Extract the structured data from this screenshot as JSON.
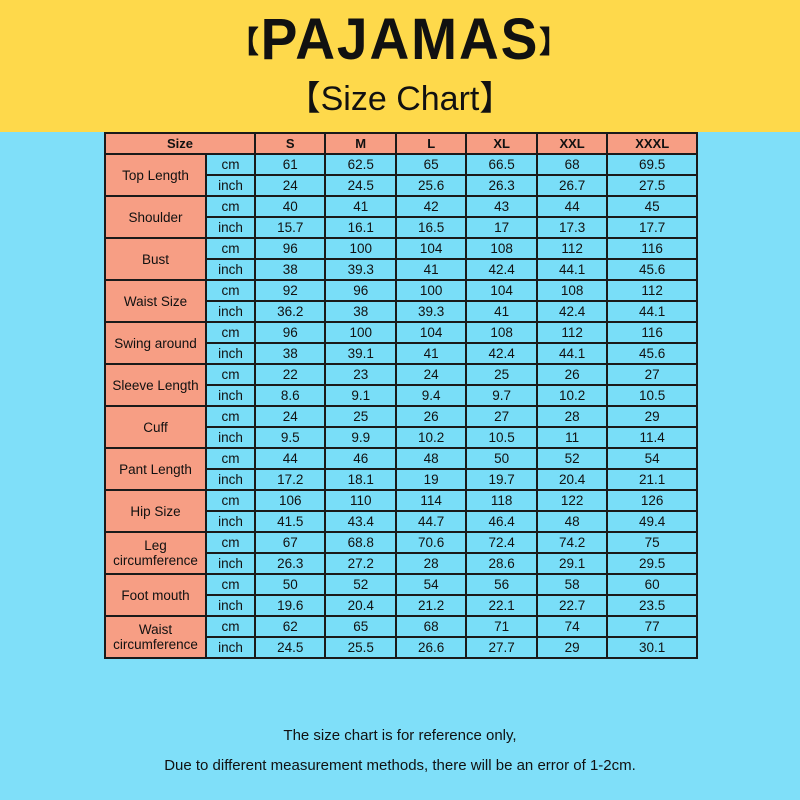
{
  "header": {
    "title": "PAJAMAS",
    "bracket_left": "【",
    "bracket_right": "】",
    "subtitle": "【Size Chart】"
  },
  "colors": {
    "banner": "#fed94b",
    "background": "#7fdff9",
    "header_cell": "#f79e84",
    "value_cell": "#79def8"
  },
  "table": {
    "size_label": "Size",
    "sizes": [
      "S",
      "M",
      "L",
      "XL",
      "XXL",
      "XXXL"
    ],
    "rows": [
      {
        "name": "Top Length",
        "cm": [
          "61",
          "62.5",
          "65",
          "66.5",
          "68",
          "69.5"
        ],
        "inch": [
          "24",
          "24.5",
          "25.6",
          "26.3",
          "26.7",
          "27.5"
        ]
      },
      {
        "name": "Shoulder",
        "cm": [
          "40",
          "41",
          "42",
          "43",
          "44",
          "45"
        ],
        "inch": [
          "15.7",
          "16.1",
          "16.5",
          "17",
          "17.3",
          "17.7"
        ]
      },
      {
        "name": "Bust",
        "cm": [
          "96",
          "100",
          "104",
          "108",
          "112",
          "116"
        ],
        "inch": [
          "38",
          "39.3",
          "41",
          "42.4",
          "44.1",
          "45.6"
        ]
      },
      {
        "name": "Waist Size",
        "cm": [
          "92",
          "96",
          "100",
          "104",
          "108",
          "112"
        ],
        "inch": [
          "36.2",
          "38",
          "39.3",
          "41",
          "42.4",
          "44.1"
        ]
      },
      {
        "name": "Swing around",
        "cm": [
          "96",
          "100",
          "104",
          "108",
          "112",
          "116"
        ],
        "inch": [
          "38",
          "39.1",
          "41",
          "42.4",
          "44.1",
          "45.6"
        ]
      },
      {
        "name": "Sleeve Length",
        "cm": [
          "22",
          "23",
          "24",
          "25",
          "26",
          "27"
        ],
        "inch": [
          "8.6",
          "9.1",
          "9.4",
          "9.7",
          "10.2",
          "10.5"
        ]
      },
      {
        "name": "Cuff",
        "cm": [
          "24",
          "25",
          "26",
          "27",
          "28",
          "29"
        ],
        "inch": [
          "9.5",
          "9.9",
          "10.2",
          "10.5",
          "11",
          "11.4"
        ]
      },
      {
        "name": "Pant Length",
        "cm": [
          "44",
          "46",
          "48",
          "50",
          "52",
          "54"
        ],
        "inch": [
          "17.2",
          "18.1",
          "19",
          "19.7",
          "20.4",
          "21.1"
        ]
      },
      {
        "name": "Hip Size",
        "cm": [
          "106",
          "110",
          "114",
          "118",
          "122",
          "126"
        ],
        "inch": [
          "41.5",
          "43.4",
          "44.7",
          "46.4",
          "48",
          "49.4"
        ]
      },
      {
        "name": "Leg circumference",
        "cm": [
          "67",
          "68.8",
          "70.6",
          "72.4",
          "74.2",
          "75"
        ],
        "inch": [
          "26.3",
          "27.2",
          "28",
          "28.6",
          "29.1",
          "29.5"
        ]
      },
      {
        "name": "Foot mouth",
        "cm": [
          "50",
          "52",
          "54",
          "56",
          "58",
          "60"
        ],
        "inch": [
          "19.6",
          "20.4",
          "21.2",
          "22.1",
          "22.7",
          "23.5"
        ]
      },
      {
        "name": "Waist circumference",
        "cm": [
          "62",
          "65",
          "68",
          "71",
          "74",
          "77"
        ],
        "inch": [
          "24.5",
          "25.5",
          "26.6",
          "27.7",
          "29",
          "30.1"
        ]
      }
    ],
    "unit_cm": "cm",
    "unit_inch": "inch"
  },
  "footer": {
    "line1": "The size chart is for reference only,",
    "line2": "Due to different measurement methods, there will be an error of 1-2cm."
  }
}
